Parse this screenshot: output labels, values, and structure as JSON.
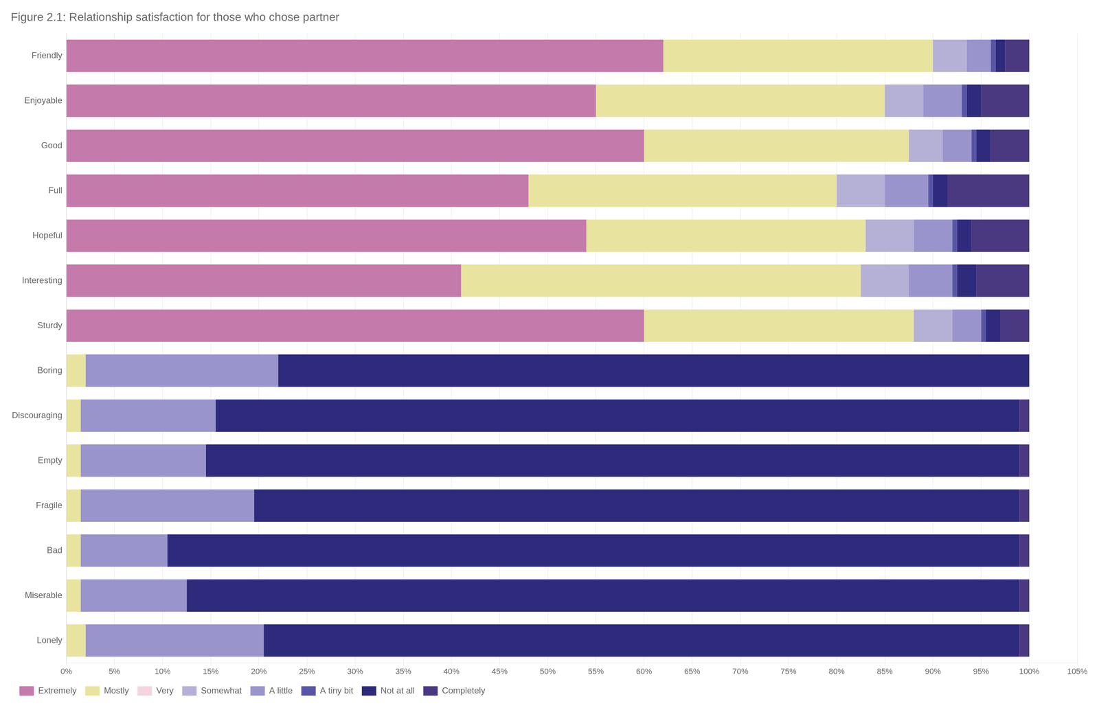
{
  "chart_data": {
    "type": "bar",
    "orientation": "horizontal",
    "stacked": true,
    "title": "Figure 2.1: Relationship satisfaction for those who chose partner",
    "categories": [
      "Friendly",
      "Enjoyable",
      "Good",
      "Full",
      "Hopeful",
      "Interesting",
      "Sturdy",
      "Boring",
      "Discouraging",
      "Empty",
      "Fragile",
      "Bad",
      "Miserable",
      "Lonely"
    ],
    "series": [
      {
        "name": "Extremely",
        "color": "#c47aaa",
        "values": [
          62.0,
          55.0,
          60.0,
          48.0,
          54.0,
          41.0,
          60.0,
          0.0,
          0.0,
          0.0,
          0.0,
          0.0,
          0.0,
          0.0
        ]
      },
      {
        "name": "Mostly",
        "color": "#e8e4a0",
        "values": [
          28.0,
          30.0,
          27.5,
          32.0,
          29.0,
          41.5,
          28.0,
          2.0,
          1.5,
          1.5,
          1.5,
          1.5,
          1.5,
          2.0
        ]
      },
      {
        "name": "Very",
        "color": "#f2d5e0",
        "values": [
          0.0,
          0.0,
          0.0,
          0.0,
          0.0,
          0.0,
          0.0,
          0.0,
          0.0,
          0.0,
          0.0,
          0.0,
          0.0,
          0.0
        ]
      },
      {
        "name": "Somewhat",
        "color": "#b5b0d5",
        "values": [
          3.5,
          4.0,
          3.5,
          5.0,
          5.0,
          5.0,
          4.0,
          0.0,
          0.0,
          0.0,
          0.0,
          0.0,
          0.0,
          0.0
        ]
      },
      {
        "name": "A little",
        "color": "#9994cc",
        "values": [
          2.5,
          4.0,
          3.0,
          4.5,
          4.0,
          4.5,
          3.0,
          20.0,
          14.0,
          13.0,
          18.0,
          9.0,
          11.0,
          18.5
        ]
      },
      {
        "name": "A tiny bit",
        "color": "#5955a5",
        "values": [
          0.5,
          0.5,
          0.5,
          0.5,
          0.5,
          0.5,
          0.5,
          0.0,
          0.0,
          0.0,
          0.0,
          0.0,
          0.0,
          0.0
        ]
      },
      {
        "name": "Not at all",
        "color": "#2e2a7c",
        "values": [
          1.0,
          1.5,
          1.5,
          1.5,
          1.5,
          2.0,
          1.5,
          78.0,
          83.5,
          84.5,
          79.5,
          88.5,
          86.5,
          78.5
        ]
      },
      {
        "name": "Completely",
        "color": "#4a3880",
        "values": [
          2.5,
          5.0,
          4.0,
          8.5,
          6.0,
          5.5,
          3.0,
          0.0,
          1.0,
          1.0,
          1.0,
          1.0,
          1.0,
          1.0
        ]
      }
    ],
    "xlim": [
      0,
      105
    ],
    "xticks": [
      {
        "value": 0,
        "label": "0%"
      },
      {
        "value": 5,
        "label": "5%"
      },
      {
        "value": 10,
        "label": "10%"
      },
      {
        "value": 15,
        "label": "15%"
      },
      {
        "value": 20,
        "label": "20%"
      },
      {
        "value": 25,
        "label": "25%"
      },
      {
        "value": 30,
        "label": "30%"
      },
      {
        "value": 35,
        "label": "35%"
      },
      {
        "value": 40,
        "label": "40%"
      },
      {
        "value": 45,
        "label": "45%"
      },
      {
        "value": 50,
        "label": "50%"
      },
      {
        "value": 55,
        "label": "55%"
      },
      {
        "value": 60,
        "label": "60%"
      },
      {
        "value": 65,
        "label": "65%"
      },
      {
        "value": 70,
        "label": "70%"
      },
      {
        "value": 75,
        "label": "75%"
      },
      {
        "value": 80,
        "label": "80%"
      },
      {
        "value": 85,
        "label": "85%"
      },
      {
        "value": 90,
        "label": "90%"
      },
      {
        "value": 95,
        "label": "95%"
      },
      {
        "value": 100,
        "label": "100%"
      },
      {
        "value": 105,
        "label": "105%"
      }
    ],
    "grid": true,
    "legend": "bottom"
  }
}
